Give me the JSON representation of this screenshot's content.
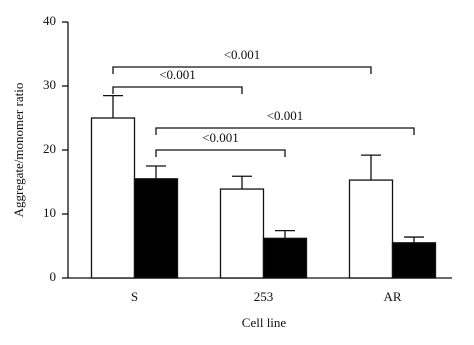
{
  "chart_data": {
    "type": "bar",
    "categories": [
      "S",
      "253",
      "AR"
    ],
    "series": [
      {
        "color": "#ffffff",
        "values": [
          25,
          13.9,
          15.3
        ],
        "errors": [
          3.5,
          2,
          3.9
        ]
      },
      {
        "color": "#000000",
        "values": [
          15.5,
          6.2,
          5.5
        ],
        "errors": [
          2,
          1.2,
          0.9
        ]
      }
    ],
    "ylim": [
      0,
      40
    ],
    "yticks": [
      0,
      10,
      20,
      30,
      40
    ],
    "xlabel": "Cell line",
    "ylabel": "Aggregate/monomer ratio",
    "annotations": [
      "<0.001",
      "<0.001",
      "<0.001",
      "<0.001"
    ]
  }
}
